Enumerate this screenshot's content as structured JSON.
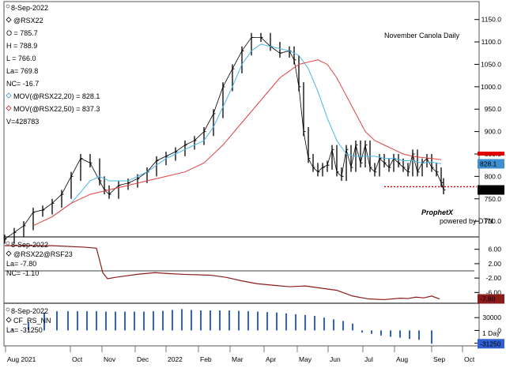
{
  "chart_data": [
    {
      "type": "ohlc",
      "title": "November Canola Daily",
      "info": {
        "date": "8-Sep-2022",
        "symbol": "@RSX22",
        "open": "O = 785.7",
        "high": "H = 788.9",
        "low": "L = 766.0",
        "last": "La= 769.8",
        "net_change": "NC= -16.7",
        "ma20_label": "MOV(@RSX22,20) = 828.1",
        "ma50_label": "MOV(@RSX22,50) = 837.3",
        "volume": "V=428783"
      },
      "yticks": [
        "1150.0",
        "1100.0",
        "1050.0",
        "1000.0",
        "950.0",
        "900.0",
        "850.0",
        "800.0",
        "750.0",
        "700.0"
      ],
      "ylim": [
        665,
        1190
      ],
      "price_tags": [
        {
          "label": "828.1",
          "value": 828.1,
          "color": "#3d8fcf"
        },
        {
          "label": "769.8",
          "value": 769.8,
          "color": "#000000"
        }
      ],
      "support_line": 777,
      "series": [
        {
          "name": "Close",
          "color": "#000000",
          "x": [
            0,
            12,
            24,
            36,
            48,
            60,
            72,
            84,
            96,
            108,
            120,
            126,
            132,
            144,
            156,
            168,
            180,
            192,
            204,
            216,
            228,
            240,
            252,
            264,
            276,
            288,
            300,
            312,
            324,
            336,
            348,
            360,
            366,
            372,
            378,
            384,
            390,
            396,
            402,
            408,
            414,
            420,
            426,
            432,
            438,
            444,
            450,
            456,
            462,
            468,
            474,
            480,
            486,
            492,
            498,
            504,
            510,
            516,
            522,
            528,
            534,
            540,
            546,
            552,
            555
          ],
          "values": [
            660,
            675,
            690,
            720,
            725,
            740,
            760,
            800,
            840,
            830,
            790,
            770,
            760,
            780,
            785,
            795,
            810,
            835,
            845,
            855,
            870,
            880,
            900,
            940,
            1000,
            1040,
            1080,
            1110,
            1110,
            1090,
            1075,
            1080,
            1060,
            1000,
            900,
            840,
            820,
            810,
            820,
            825,
            860,
            810,
            800,
            860,
            820,
            870,
            830,
            870,
            820,
            810,
            840,
            830,
            820,
            840,
            830,
            820,
            810,
            850,
            810,
            830,
            840,
            820,
            810,
            786,
            770
          ]
        },
        {
          "name": "MOV 20",
          "color": "#4ab7e8",
          "x": [
            60,
            84,
            108,
            120,
            132,
            144,
            156,
            168,
            180,
            192,
            204,
            216,
            228,
            240,
            252,
            264,
            276,
            288,
            300,
            312,
            324,
            336,
            348,
            360,
            372,
            384,
            396,
            408,
            420,
            432,
            444,
            456,
            468,
            480,
            492,
            504,
            516,
            528,
            540,
            552
          ],
          "values": [
            710,
            740,
            790,
            800,
            790,
            790,
            790,
            800,
            810,
            825,
            840,
            850,
            860,
            870,
            880,
            910,
            955,
            1000,
            1050,
            1080,
            1095,
            1090,
            1085,
            1080,
            1070,
            1040,
            990,
            930,
            880,
            850,
            845,
            845,
            845,
            840,
            840,
            835,
            835,
            830,
            832,
            828.1
          ]
        },
        {
          "name": "MOV 50",
          "color": "#e04040",
          "x": [
            36,
            60,
            84,
            108,
            132,
            156,
            180,
            204,
            228,
            252,
            276,
            300,
            324,
            348,
            372,
            396,
            408,
            420,
            432,
            444,
            456,
            468,
            480,
            492,
            504,
            516,
            528,
            540,
            552
          ],
          "values": [
            690,
            710,
            740,
            760,
            770,
            780,
            790,
            800,
            810,
            830,
            870,
            920,
            970,
            1020,
            1050,
            1060,
            1050,
            1020,
            980,
            940,
            900,
            880,
            870,
            860,
            850,
            845,
            842,
            840,
            837.3
          ]
        }
      ]
    },
    {
      "type": "line",
      "info": {
        "date": "8-Sep-2022",
        "symbol": "@RSX22@RSF23",
        "last": "La= -7.80",
        "net_change": "NC= -1.10"
      },
      "yticks": [
        "6.00",
        "2.00",
        "-2.00",
        "-6.00"
      ],
      "ylim": [
        -9,
        9
      ],
      "price_tags": [
        {
          "label": "-7.80",
          "value": -7.8,
          "color": "#8b1c1c"
        }
      ],
      "reference_line": 0,
      "series": [
        {
          "name": "Spread",
          "color": "#8b1c1c",
          "x": [
            0,
            60,
            100,
            116,
            124,
            130,
            140,
            150,
            170,
            190,
            210,
            230,
            260,
            280,
            300,
            320,
            340,
            360,
            380,
            400,
            420,
            440,
            460,
            480,
            500,
            510,
            520,
            530,
            540,
            550
          ],
          "values": [
            7,
            7,
            6.6,
            6.3,
            -0.5,
            -2.2,
            -1.8,
            -1.5,
            -0.9,
            -0.5,
            -0.8,
            -1.0,
            -1.2,
            -1.8,
            -2.8,
            -3.6,
            -4,
            -4.4,
            -4.2,
            -4.8,
            -5.4,
            -7,
            -7.8,
            -8,
            -7.6,
            -7.7,
            -7.3,
            -7.5,
            -7.0,
            -7.8
          ]
        }
      ]
    },
    {
      "type": "bar",
      "info": {
        "date": "8-Sep-2022",
        "symbol": "CF_RS_NN",
        "last": "La= -31250"
      },
      "yticks": [
        "30000",
        "0",
        "-30000"
      ],
      "ylim": [
        -40000,
        60000
      ],
      "price_tags": [
        {
          "label": "-31250",
          "value": -31250,
          "color": "#2f5fd0"
        }
      ],
      "series": [
        {
          "name": "CF_RS_NN",
          "color": "#2f5fd0",
          "x": [
            10,
            30,
            50,
            66,
            80,
            92,
            104,
            116,
            128,
            140,
            152,
            164,
            176,
            188,
            200,
            212,
            224,
            236,
            248,
            260,
            272,
            284,
            296,
            308,
            320,
            332,
            344,
            356,
            368,
            380,
            392,
            404,
            416,
            428,
            440,
            452,
            464,
            476,
            488,
            500,
            512,
            524,
            540
          ],
          "values": [
            4000,
            20000,
            42000,
            45000,
            45000,
            45000,
            45000,
            45000,
            44000,
            44000,
            44000,
            44000,
            44000,
            45000,
            46000,
            48000,
            50000,
            48000,
            47000,
            47000,
            47000,
            47000,
            46000,
            45000,
            44000,
            43000,
            42000,
            40000,
            38000,
            36000,
            34000,
            30000,
            26000,
            22000,
            16000,
            -5000,
            -8000,
            -12000,
            -15000,
            -17000,
            -20000,
            -22000,
            -31250
          ]
        }
      ]
    }
  ],
  "x_axis": {
    "labels": [
      "Aug 2021",
      "Oct",
      "Nov",
      "Dec",
      "2022",
      "Feb",
      "Mar",
      "Apr",
      "May",
      "Jun",
      "Jul",
      "Aug",
      "Sep",
      "Oct"
    ],
    "period": "1 Day"
  },
  "watermark": {
    "brand": "ProphetX",
    "tagline": "powered by DTN"
  }
}
